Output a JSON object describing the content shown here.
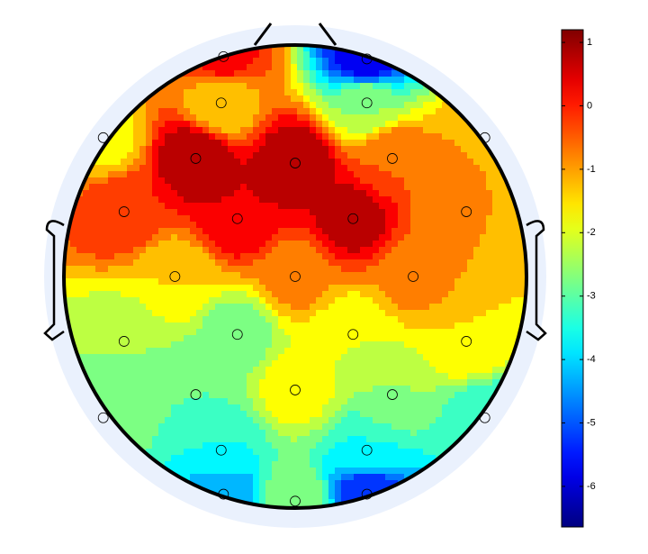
{
  "chart_data": {
    "type": "topoplot",
    "x": [
      -0.31,
      0.31,
      -0.32,
      0.31,
      -0.83,
      0.82,
      -0.43,
      0,
      0.42,
      -0.74,
      -0.25,
      0.25,
      0.74,
      -0.52,
      0,
      0.51,
      -0.74,
      -0.25,
      0.25,
      0.74,
      -0.43,
      0,
      0.42,
      -0.83,
      0.82,
      -0.32,
      0.31,
      -0.31,
      0,
      0.31
    ],
    "y": [
      0.95,
      0.94,
      0.75,
      0.75,
      0.6,
      0.6,
      0.51,
      0.49,
      0.51,
      0.28,
      0.25,
      0.25,
      0.28,
      0,
      0,
      0,
      -0.28,
      -0.25,
      -0.25,
      -0.28,
      -0.51,
      -0.49,
      -0.51,
      -0.61,
      -0.61,
      -0.75,
      -0.75,
      -0.94,
      -0.97,
      -0.94
    ],
    "values": [
      0.2,
      -6,
      -1.5,
      -2.5,
      -1.7,
      -1,
      1,
      1,
      -0.5,
      0,
      0.5,
      0.8,
      -1,
      -1.5,
      -0.8,
      -0.8,
      -2.5,
      -2.8,
      -2,
      -1.5,
      -3,
      -1.7,
      -2.5,
      -2.7,
      -3.5,
      -3.5,
      -3.5,
      -4.5,
      -2.5,
      -5.5
    ],
    "colormap": "jet",
    "clim": [
      -6.64,
      1.2
    ],
    "cticks": [
      1,
      0,
      -1,
      -2,
      -3,
      -4,
      -5,
      -6
    ]
  }
}
